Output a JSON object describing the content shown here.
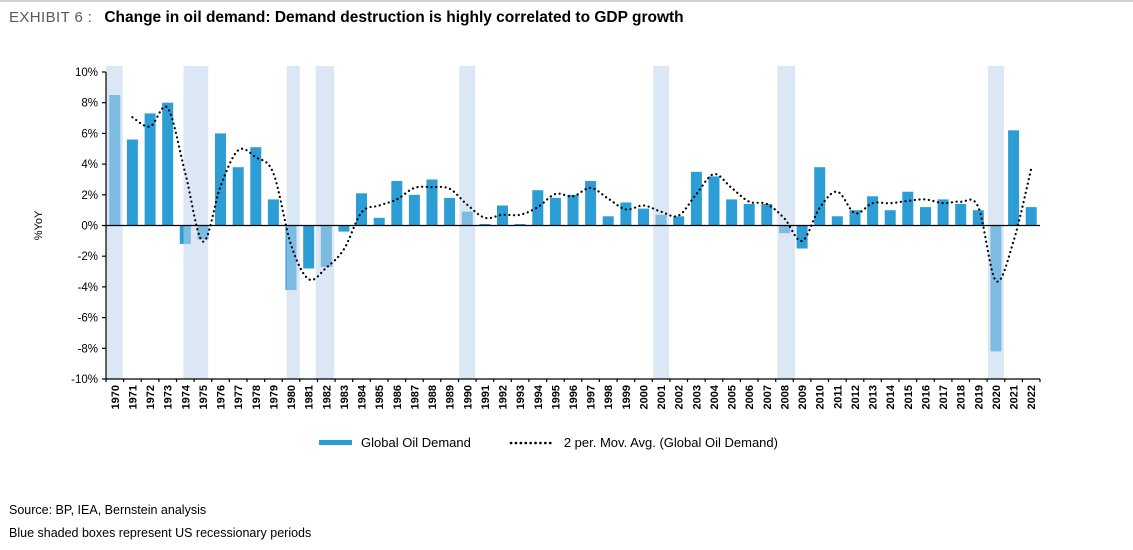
{
  "header": {
    "exhibit_label": "EXHIBIT 6 :",
    "title": "Change in oil demand: Demand destruction is highly correlated to GDP growth"
  },
  "legend": {
    "bar_label": "Global Oil Demand",
    "line_label": "2 per. Mov. Avg. (Global Oil Demand)"
  },
  "footer": {
    "source": "Source: BP, IEA, Bernstein analysis",
    "note": "Blue shaded boxes represent US recessionary periods"
  },
  "colors": {
    "bar": "#2D9DD6",
    "recession_band": "#BFD4EC",
    "mov_avg": "#000000",
    "axis": "#000000"
  },
  "chart_data": {
    "type": "bar",
    "title": "Change in oil demand: Demand destruction is highly correlated to GDP growth",
    "xlabel": "",
    "ylabel": "%YoY",
    "ylim": [
      -10,
      10
    ],
    "ytick_step": 2,
    "ytick_format": "percent",
    "grid": false,
    "legend_position": "bottom",
    "categories": [
      1970,
      1971,
      1972,
      1973,
      1974,
      1975,
      1976,
      1977,
      1978,
      1979,
      1980,
      1981,
      1982,
      1983,
      1984,
      1985,
      1986,
      1987,
      1988,
      1989,
      1990,
      1991,
      1992,
      1993,
      1994,
      1995,
      1996,
      1997,
      1998,
      1999,
      2000,
      2001,
      2002,
      2003,
      2004,
      2005,
      2006,
      2007,
      2008,
      2009,
      2010,
      2011,
      2012,
      2013,
      2014,
      2015,
      2016,
      2017,
      2018,
      2019,
      2020,
      2021,
      2022
    ],
    "series": [
      {
        "name": "Global Oil Demand",
        "type": "bar",
        "color": "#2D9DD6",
        "values": [
          8.5,
          5.6,
          7.3,
          8.0,
          -1.2,
          -0.9,
          6.0,
          3.8,
          5.1,
          1.7,
          -4.2,
          -2.8,
          -2.7,
          -0.4,
          2.1,
          0.5,
          2.9,
          2.0,
          3.0,
          1.8,
          0.9,
          0.1,
          1.3,
          0.1,
          2.3,
          1.8,
          2.0,
          2.9,
          0.6,
          1.5,
          1.1,
          0.7,
          0.6,
          3.5,
          3.2,
          1.7,
          1.4,
          1.4,
          -0.5,
          -1.5,
          3.8,
          0.6,
          1.0,
          1.9,
          1.0,
          2.2,
          1.2,
          1.7,
          1.4,
          1.0,
          -8.2,
          6.2,
          1.2
        ]
      },
      {
        "name": "2 per. Mov. Avg. (Global Oil Demand)",
        "type": "dotted-line",
        "color": "#000000",
        "start_year": 1971,
        "derived": "2-period moving average of Global Oil Demand",
        "values": [
          7.05,
          6.45,
          7.65,
          3.4,
          -1.05,
          2.55,
          4.9,
          4.45,
          3.4,
          -1.25,
          -3.5,
          -2.75,
          -1.55,
          0.85,
          1.3,
          1.7,
          2.45,
          2.5,
          2.4,
          1.35,
          0.5,
          0.7,
          0.7,
          1.2,
          2.05,
          1.9,
          2.45,
          1.75,
          1.05,
          1.3,
          0.9,
          0.65,
          2.05,
          3.35,
          2.45,
          1.55,
          1.4,
          0.45,
          -1.0,
          1.15,
          2.2,
          0.8,
          1.45,
          1.45,
          1.6,
          1.7,
          1.45,
          1.55,
          1.2,
          -3.6,
          -1.0,
          3.7
        ]
      }
    ],
    "recession_bands": [
      [
        1969.5,
        1970.45
      ],
      [
        1973.9,
        1975.3
      ],
      [
        1979.75,
        1980.5
      ],
      [
        1981.4,
        1982.45
      ],
      [
        1989.55,
        1990.45
      ],
      [
        2000.55,
        2001.45
      ],
      [
        2007.6,
        2008.6
      ],
      [
        2019.55,
        2020.45
      ]
    ],
    "annotation": "Blue shaded boxes represent US recessionary periods"
  }
}
